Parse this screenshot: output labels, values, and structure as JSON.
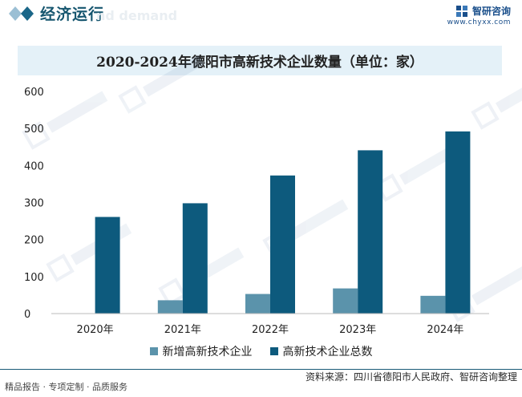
{
  "header": {
    "section_title": "经济运行",
    "ghost_text": "nd demand",
    "brand_name": "智研咨询",
    "brand_url": "www.chyxx.com"
  },
  "colors": {
    "series_new": "#5b93ab",
    "series_total": "#0d5a7d",
    "title_band": "#e4f1f8",
    "brand": "#1a4f8b"
  },
  "chart_data": {
    "type": "bar",
    "title": "2020-2024年德阳市高新技术企业数量（单位：家）",
    "categories": [
      "2020年",
      "2021年",
      "2022年",
      "2023年",
      "2024年"
    ],
    "series": [
      {
        "name": "新增高新技术企业",
        "values": [
          0,
          36,
          53,
          68,
          48
        ]
      },
      {
        "name": "高新技术企业总数",
        "values": [
          261,
          298,
          373,
          441,
          492
        ]
      }
    ],
    "ylim": [
      0,
      600
    ],
    "yticks": [
      "0",
      "100",
      "200",
      "300",
      "400",
      "500",
      "600"
    ],
    "grid": false,
    "legend_position": "bottom"
  },
  "footer": {
    "source": "资料来源：四川省德阳市人民政府、智研咨询整理",
    "left": "精品报告 · 专项定制 · 品质服务"
  }
}
